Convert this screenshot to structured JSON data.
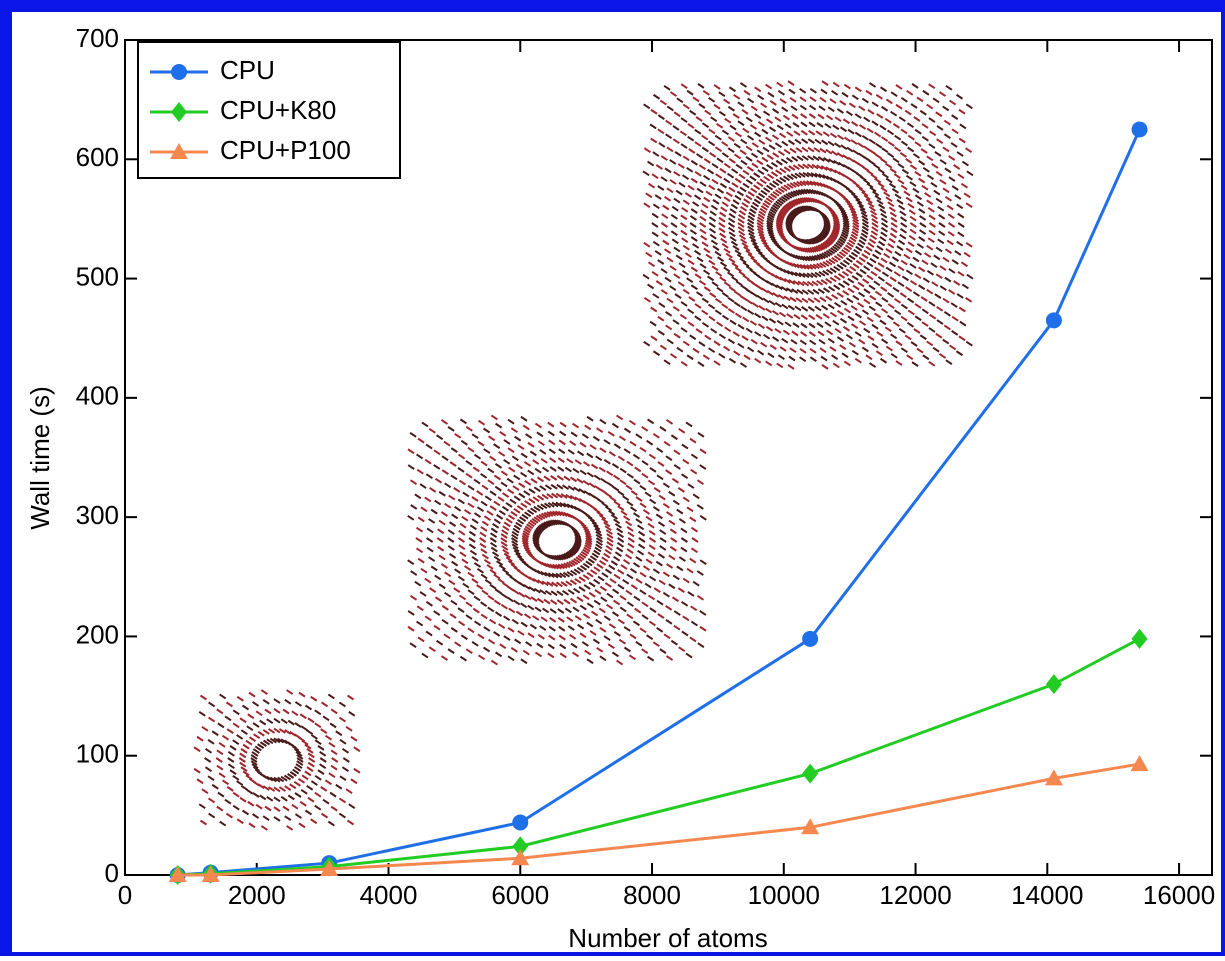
{
  "chart_data": {
    "type": "line",
    "x_label": "Number of atoms",
    "y_label": "Wall time (s)",
    "x": [
      800,
      1300,
      3100,
      6000,
      10400,
      14100,
      15400
    ],
    "series": [
      {
        "name": "CPU",
        "color": "#1f6fe8",
        "marker": "circle",
        "values": [
          0,
          2,
          10,
          44,
          198,
          465,
          625
        ]
      },
      {
        "name": "CPU+K80",
        "color": "#22cc22",
        "marker": "diamond",
        "values": [
          0,
          1,
          7,
          24,
          85,
          160,
          198
        ]
      },
      {
        "name": "CPU+P100",
        "color": "#f5884f",
        "marker": "triangle",
        "values": [
          0,
          0,
          5,
          14,
          40,
          81,
          93
        ]
      }
    ],
    "xlim": [
      0,
      16500
    ],
    "ylim": [
      0,
      700
    ],
    "xticks": [
      0,
      2000,
      4000,
      6000,
      8000,
      10000,
      12000,
      14000,
      16000
    ],
    "yticks": [
      0,
      100,
      200,
      300,
      400,
      500,
      600,
      700
    ],
    "legend": "upper-left"
  }
}
